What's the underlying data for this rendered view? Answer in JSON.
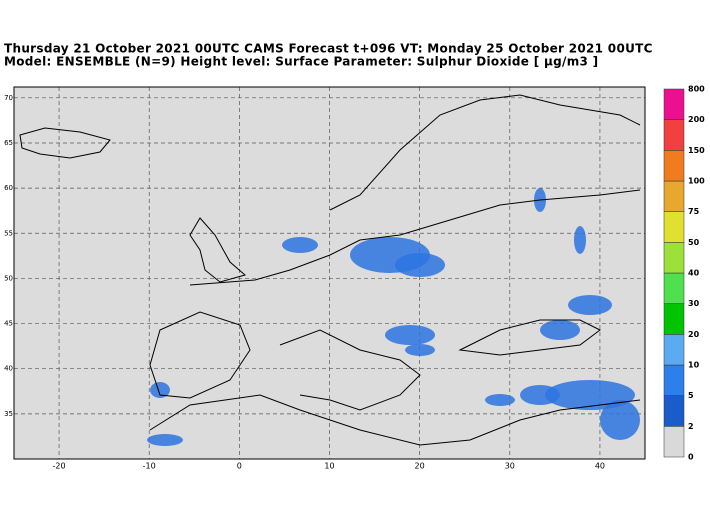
{
  "header": {
    "title": "Thursday 21 October 2021 00UTC CAMS Forecast t+096 VT: Monday 25 October 2021 00UTC",
    "subtitle": "Model: ENSEMBLE (N=9) Height level: Surface  Parameter: Sulphur Dioxide [ µg/m3 ]"
  },
  "map": {
    "lon_range": [
      -25,
      45
    ],
    "lat_range": [
      30,
      71.2
    ],
    "lon_ticks": [
      -20,
      -10,
      0,
      10,
      20,
      30,
      40
    ],
    "lat_ticks": [
      35,
      40,
      45,
      50,
      55,
      60,
      65,
      70
    ],
    "background": "#dcdcdc",
    "plume_color": "#2d74e0"
  },
  "colorbar": {
    "levels": [
      0,
      2,
      5,
      10,
      20,
      30,
      40,
      50,
      75,
      100,
      150,
      200,
      800
    ],
    "colors": [
      "#d9d9d9",
      "#1a5cc8",
      "#2d80ec",
      "#5caaf2",
      "#00c400",
      "#4ee04e",
      "#9ee03a",
      "#e0e030",
      "#e8a830",
      "#f07c20",
      "#f04040",
      "#ec1090"
    ]
  }
}
